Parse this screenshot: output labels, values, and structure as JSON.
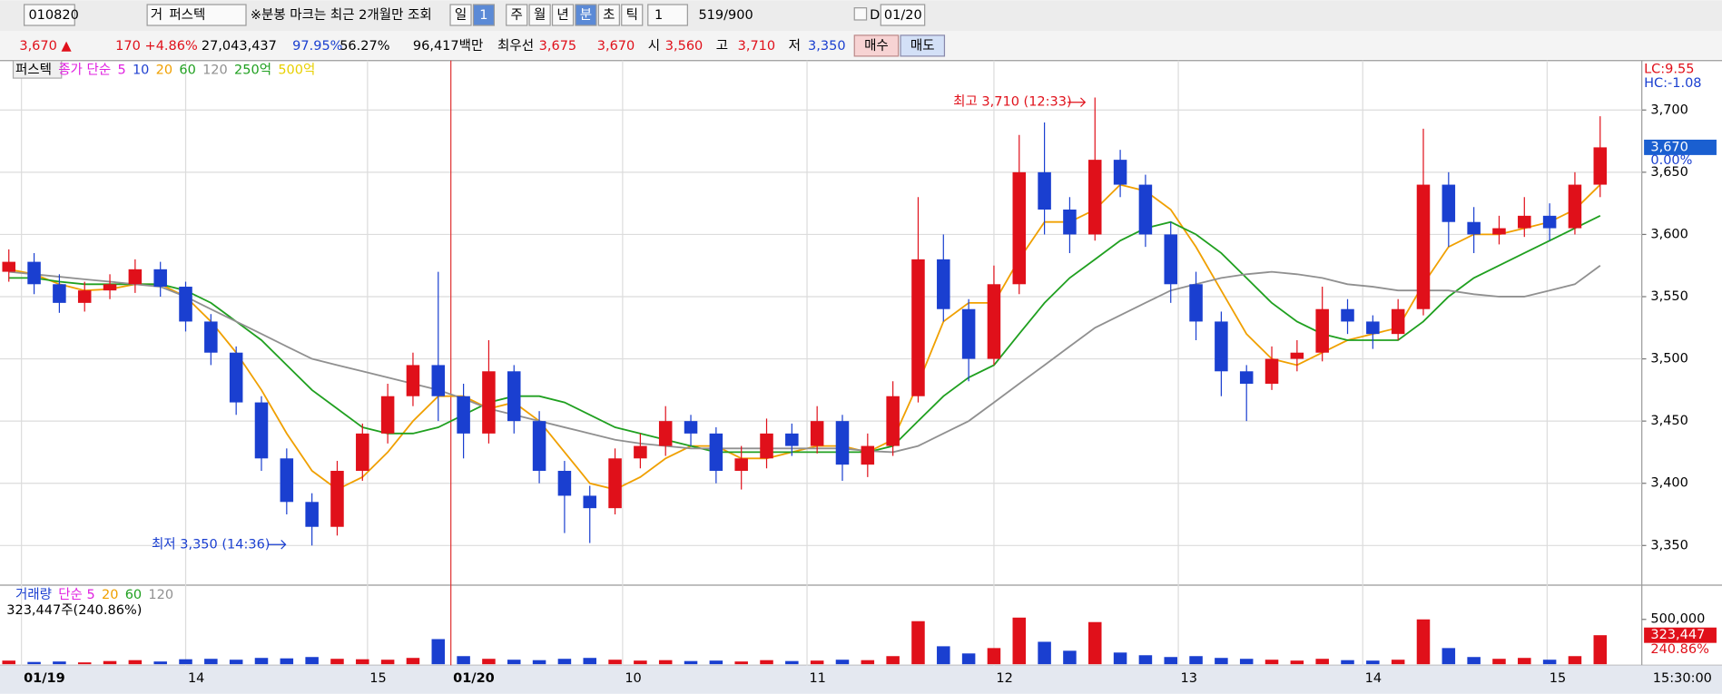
{
  "toolbar": {
    "code": "010820",
    "market": "거",
    "name": "퍼스텍",
    "notice": "※분봉 마크는 최근 2개월만 조회",
    "periods": [
      "일",
      "1",
      "주",
      "월",
      "년",
      "분",
      "초",
      "틱"
    ],
    "interval": "1",
    "count": "519/900",
    "d_label": "D",
    "date": "01/20"
  },
  "quote": {
    "price": "3,670 ▲",
    "change": "170",
    "rate": "+4.86%",
    "volume": "27,043,437",
    "ratio1": "97.95%",
    "ratio2": "56.27%",
    "amount": "96,417백만",
    "best_label": "최우선",
    "ask": "3,675",
    "bid": "3,670",
    "open_label": "시",
    "open": "3,560",
    "high_label": "고",
    "high": "3,710",
    "low_label": "저",
    "low": "3,350",
    "buy": "매수",
    "sell": "매도"
  },
  "chart_data": {
    "type": "candlestick",
    "name": "퍼스텍",
    "ma_label": "종가 단순",
    "ma_extra": [
      {
        "name": "5",
        "color": "#e020e0"
      },
      {
        "name": "10",
        "color": "#2040d0"
      }
    ],
    "amounts": [
      "250억",
      "500억"
    ],
    "up_color": "#e0101a",
    "down_color": "#1a3fd0",
    "corner": [
      "LC:9.55",
      "HC:-1.08"
    ],
    "annotations": {
      "max": "최고 3,710 (12:33)",
      "min": "최저 3,350 (14:36)"
    },
    "last_price_label": "3,670",
    "last_rate_label": "0.00%",
    "open": [
      3570,
      3578,
      3560,
      3545,
      3555,
      3560,
      3572,
      3558,
      3530,
      3505,
      3465,
      3420,
      3385,
      3365,
      3410,
      3440,
      3470,
      3495,
      3470,
      3440,
      3490,
      3450,
      3410,
      3390,
      3380,
      3420,
      3430,
      3450,
      3440,
      3410,
      3420,
      3440,
      3430,
      3450,
      3415,
      3430,
      3470,
      3580,
      3540,
      3500,
      3560,
      3650,
      3620,
      3600,
      3660,
      3640,
      3600,
      3560,
      3530,
      3490,
      3480,
      3500,
      3505,
      3540,
      3530,
      3520,
      3540,
      3640,
      3610,
      3600,
      3605,
      3615,
      3605,
      3640
    ],
    "high": [
      3588,
      3585,
      3568,
      3562,
      3568,
      3580,
      3578,
      3562,
      3536,
      3510,
      3470,
      3428,
      3392,
      3418,
      3448,
      3480,
      3505,
      3570,
      3480,
      3515,
      3495,
      3458,
      3418,
      3398,
      3428,
      3440,
      3462,
      3455,
      3445,
      3430,
      3452,
      3448,
      3462,
      3455,
      3440,
      3482,
      3630,
      3600,
      3548,
      3575,
      3680,
      3690,
      3630,
      3710,
      3668,
      3648,
      3610,
      3570,
      3538,
      3495,
      3510,
      3515,
      3558,
      3548,
      3535,
      3548,
      3685,
      3650,
      3622,
      3615,
      3630,
      3625,
      3650,
      3695
    ],
    "low": [
      3562,
      3552,
      3537,
      3538,
      3548,
      3553,
      3550,
      3522,
      3495,
      3455,
      3410,
      3375,
      3350,
      3358,
      3402,
      3432,
      3462,
      3450,
      3420,
      3432,
      3440,
      3400,
      3360,
      3352,
      3375,
      3412,
      3422,
      3430,
      3400,
      3395,
      3412,
      3422,
      3424,
      3402,
      3405,
      3422,
      3465,
      3530,
      3482,
      3495,
      3552,
      3600,
      3585,
      3595,
      3630,
      3590,
      3545,
      3515,
      3470,
      3450,
      3475,
      3490,
      3498,
      3520,
      3508,
      3515,
      3535,
      3590,
      3585,
      3592,
      3598,
      3595,
      3600,
      3630
    ],
    "close": [
      3578,
      3560,
      3545,
      3555,
      3560,
      3572,
      3558,
      3530,
      3505,
      3465,
      3420,
      3385,
      3365,
      3410,
      3440,
      3470,
      3495,
      3470,
      3440,
      3490,
      3450,
      3410,
      3390,
      3380,
      3420,
      3430,
      3450,
      3440,
      3410,
      3420,
      3440,
      3430,
      3450,
      3415,
      3430,
      3470,
      3580,
      3540,
      3500,
      3560,
      3650,
      3620,
      3600,
      3660,
      3640,
      3600,
      3560,
      3530,
      3490,
      3480,
      3500,
      3505,
      3540,
      3530,
      3520,
      3540,
      3640,
      3610,
      3600,
      3605,
      3615,
      3605,
      3640,
      3670
    ],
    "series": [
      {
        "name": "20",
        "color": "#f0a000",
        "values": [
          3572,
          3568,
          3560,
          3555,
          3556,
          3560,
          3560,
          3550,
          3530,
          3505,
          3475,
          3440,
          3410,
          3395,
          3405,
          3425,
          3450,
          3470,
          3470,
          3460,
          3465,
          3450,
          3425,
          3400,
          3395,
          3405,
          3420,
          3430,
          3430,
          3420,
          3420,
          3425,
          3430,
          3430,
          3425,
          3435,
          3480,
          3530,
          3545,
          3545,
          3580,
          3610,
          3610,
          3620,
          3640,
          3635,
          3620,
          3590,
          3555,
          3520,
          3500,
          3495,
          3505,
          3515,
          3520,
          3525,
          3560,
          3590,
          3600,
          3600,
          3605,
          3610,
          3620,
          3640
        ]
      },
      {
        "name": "60",
        "color": "#20a020",
        "values": [
          3565,
          3565,
          3562,
          3560,
          3560,
          3560,
          3560,
          3555,
          3545,
          3530,
          3515,
          3495,
          3475,
          3460,
          3445,
          3440,
          3440,
          3445,
          3455,
          3465,
          3470,
          3470,
          3465,
          3455,
          3445,
          3440,
          3435,
          3430,
          3425,
          3425,
          3425,
          3425,
          3425,
          3425,
          3425,
          3430,
          3450,
          3470,
          3485,
          3495,
          3520,
          3545,
          3565,
          3580,
          3595,
          3605,
          3610,
          3600,
          3585,
          3565,
          3545,
          3530,
          3520,
          3515,
          3515,
          3515,
          3530,
          3550,
          3565,
          3575,
          3585,
          3595,
          3605,
          3615
        ]
      },
      {
        "name": "120",
        "color": "#909090",
        "values": [
          3570,
          3568,
          3566,
          3564,
          3562,
          3560,
          3558,
          3550,
          3540,
          3530,
          3520,
          3510,
          3500,
          3495,
          3490,
          3485,
          3480,
          3475,
          3468,
          3460,
          3455,
          3450,
          3445,
          3440,
          3435,
          3432,
          3430,
          3428,
          3428,
          3428,
          3428,
          3428,
          3428,
          3428,
          3426,
          3425,
          3430,
          3440,
          3450,
          3465,
          3480,
          3495,
          3510,
          3525,
          3535,
          3545,
          3555,
          3560,
          3565,
          3568,
          3570,
          3568,
          3565,
          3560,
          3558,
          3555,
          3555,
          3555,
          3552,
          3550,
          3550,
          3555,
          3560,
          3575
        ]
      }
    ],
    "xlim": [
      -0.35,
      64.65
    ],
    "xticks": [
      {
        "value": 0.5,
        "label": "01/19"
      },
      {
        "value": 7,
        "label": "14"
      },
      {
        "value": 14.2,
        "label": "15"
      },
      {
        "value": 17.5,
        "label": "01/20"
      },
      {
        "value": 24.3,
        "label": "10"
      },
      {
        "value": 31.6,
        "label": "11"
      },
      {
        "value": 39,
        "label": "12"
      },
      {
        "value": 46.3,
        "label": "13"
      },
      {
        "value": 53.6,
        "label": "14"
      },
      {
        "value": 60.9,
        "label": "15"
      }
    ],
    "x_end_label": "15:30:00",
    "ylim": [
      3319,
      3738
    ],
    "yticks": [
      {
        "value": 3350,
        "label": "3,350"
      },
      {
        "value": 3400,
        "label": "3,400"
      },
      {
        "value": 3450,
        "label": "3,450"
      },
      {
        "value": 3500,
        "label": "3,500"
      },
      {
        "value": 3550,
        "label": "3,550"
      },
      {
        "value": 3600,
        "label": "3,600"
      },
      {
        "value": 3650,
        "label": "3,650"
      },
      {
        "value": 3700,
        "label": "3,700"
      }
    ],
    "grid": true,
    "volume": {
      "title": "거래량",
      "ma_label": "단순 5",
      "ma_periods": [
        "20",
        "60",
        "120"
      ],
      "summary": "323,447주(240.86%)",
      "color_up": "#e0101a",
      "color_down": "#1a3fd0",
      "values": [
        40000,
        25000,
        30000,
        20000,
        35000,
        45000,
        30000,
        55000,
        60000,
        50000,
        70000,
        65000,
        80000,
        60000,
        55000,
        50000,
        70000,
        280000,
        90000,
        60000,
        50000,
        45000,
        60000,
        70000,
        50000,
        40000,
        45000,
        35000,
        40000,
        30000,
        45000,
        35000,
        40000,
        50000,
        45000,
        90000,
        480000,
        200000,
        120000,
        180000,
        520000,
        250000,
        150000,
        470000,
        130000,
        100000,
        80000,
        90000,
        70000,
        60000,
        50000,
        40000,
        60000,
        45000,
        40000,
        50000,
        500000,
        180000,
        80000,
        60000,
        70000,
        50000,
        90000,
        323447
      ],
      "ylim": [
        0,
        833000
      ],
      "yticks": [
        {
          "value": 500000,
          "label": "500,000"
        }
      ],
      "last_label": "323,447",
      "last_rate": "240.86%"
    }
  }
}
